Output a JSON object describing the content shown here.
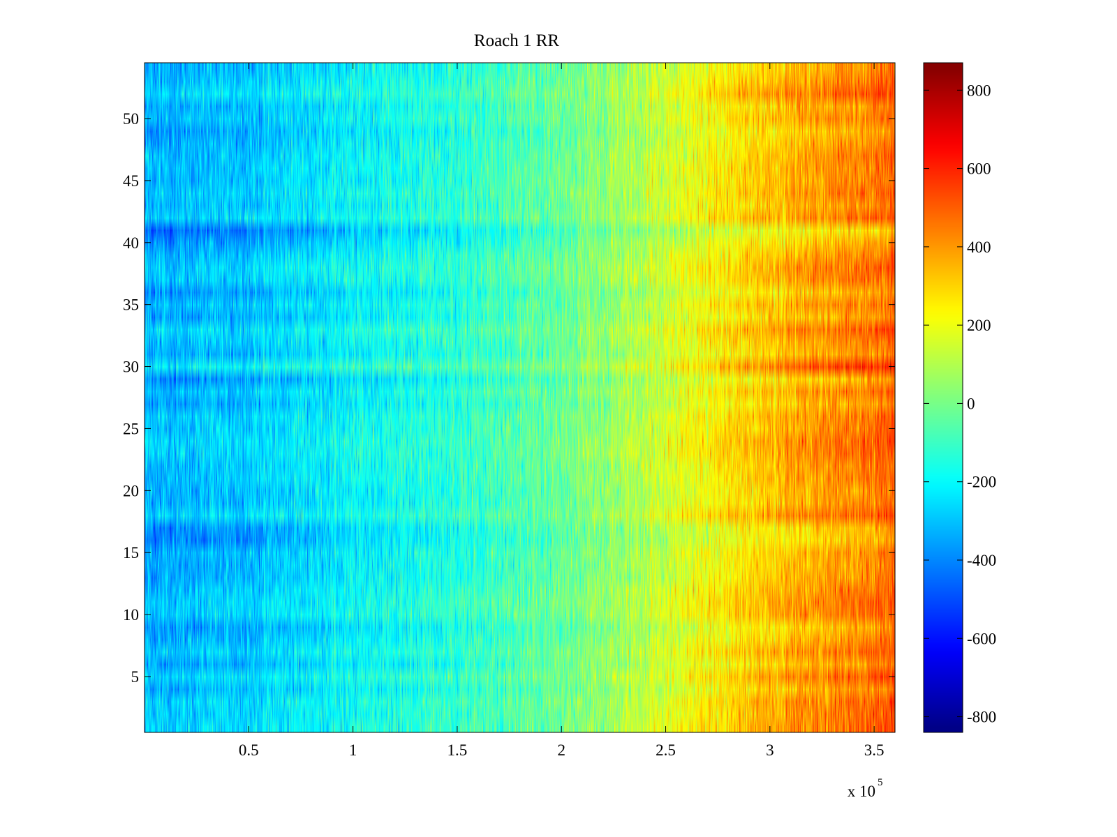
{
  "chart_data": {
    "type": "heatmap",
    "title": "Roach 1 RR",
    "xlabel": "",
    "ylabel": "",
    "x_multiplier_label": {
      "base": "x 10",
      "exponent": "5"
    },
    "xlim": [
      0,
      3.6
    ],
    "ylim": [
      0.5,
      54.5
    ],
    "x_ticks": [
      {
        "value": 0.5,
        "label": "0.5"
      },
      {
        "value": 1,
        "label": "1"
      },
      {
        "value": 1.5,
        "label": "1.5"
      },
      {
        "value": 2,
        "label": "2"
      },
      {
        "value": 2.5,
        "label": "2.5"
      },
      {
        "value": 3,
        "label": "3"
      },
      {
        "value": 3.5,
        "label": "3.5"
      }
    ],
    "y_ticks": [
      {
        "value": 5,
        "label": "5"
      },
      {
        "value": 10,
        "label": "10"
      },
      {
        "value": 15,
        "label": "15"
      },
      {
        "value": 20,
        "label": "20"
      },
      {
        "value": 25,
        "label": "25"
      },
      {
        "value": 30,
        "label": "30"
      },
      {
        "value": 35,
        "label": "35"
      },
      {
        "value": 40,
        "label": "40"
      },
      {
        "value": 45,
        "label": "45"
      },
      {
        "value": 50,
        "label": "50"
      }
    ],
    "rows": 54,
    "colormap": "jet",
    "colorbar": {
      "range": [
        -840,
        870
      ],
      "ticks": [
        {
          "value": -800,
          "label": "-800"
        },
        {
          "value": -600,
          "label": "-600"
        },
        {
          "value": -400,
          "label": "-400"
        },
        {
          "value": -200,
          "label": "-200"
        },
        {
          "value": 0,
          "label": "0"
        },
        {
          "value": 200,
          "label": "200"
        },
        {
          "value": 400,
          "label": "400"
        },
        {
          "value": 600,
          "label": "600"
        },
        {
          "value": 800,
          "label": "800"
        }
      ]
    },
    "trend": {
      "x": [
        0,
        0.5,
        1,
        1.5,
        2,
        2.5,
        3,
        3.5,
        3.6
      ],
      "value": [
        -330,
        -290,
        -200,
        -130,
        -30,
        150,
        330,
        450,
        480
      ]
    }
  }
}
